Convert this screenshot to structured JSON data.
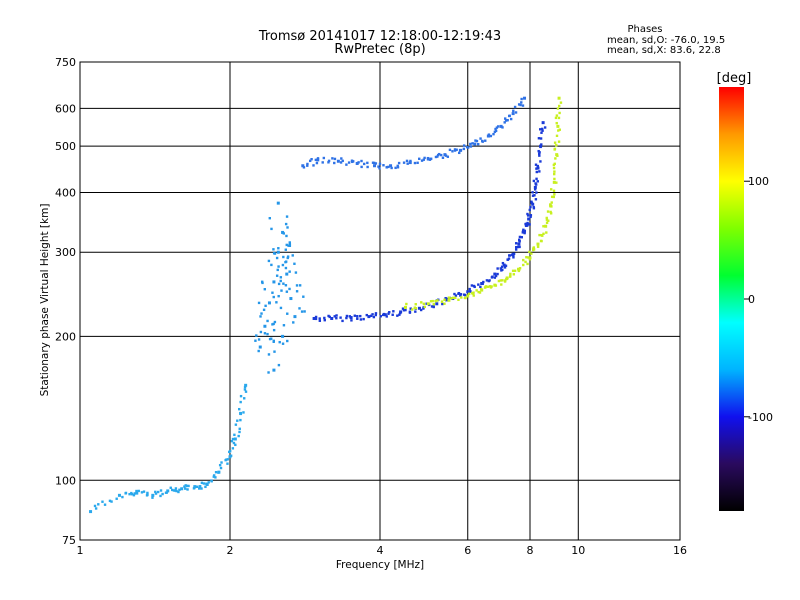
{
  "chart_data": {
    "type": "scatter",
    "title": "Tromsø 20141017 12:18:00-12:19:43",
    "subtitle": "RwPretec (8p)",
    "stats": {
      "heading": "Phases",
      "line1": "mean, sd,O: -76.0, 19.5",
      "line2": "mean, sd,X:  83.6, 22.8"
    },
    "xlabel": "Frequency [MHz]",
    "ylabel": "Stationary phase Virtual Height [km]",
    "x_scale": "log",
    "y_scale": "log",
    "xlim": [
      1,
      16
    ],
    "ylim": [
      75,
      750
    ],
    "x_ticks": [
      1,
      2,
      4,
      6,
      8,
      10,
      16
    ],
    "x_tick_labels": [
      "1",
      "2",
      "4",
      "6",
      "8",
      "10",
      "16"
    ],
    "y_ticks": [
      75,
      100,
      200,
      300,
      400,
      500,
      600,
      750
    ],
    "y_tick_labels": [
      "75",
      "100",
      "200",
      "300",
      "400",
      "500",
      "600",
      "750"
    ],
    "grid": true,
    "colorbar": {
      "label": "[deg]",
      "range": [
        -180,
        180
      ],
      "ticks": [
        100,
        0,
        -100
      ],
      "tick_labels": [
        "100",
        "0",
        "-100"
      ],
      "colors": [
        "#000000",
        "#2a0a5e",
        "#1010ee",
        "#00b4ff",
        "#00ffff",
        "#00ff30",
        "#7fff00",
        "#ffff00",
        "#ff9900",
        "#ff0000"
      ]
    },
    "series": [
      {
        "role": "O-mode F2 trace (blue)",
        "color": "#1a3ad8",
        "x": [
          2.95,
          3.2,
          3.5,
          3.8,
          4.1,
          4.4,
          4.8,
          5.2,
          5.6,
          6.0,
          6.4,
          6.8,
          7.1,
          7.4,
          7.6,
          7.8,
          7.95,
          8.1,
          8.2,
          8.3,
          8.4,
          8.5
        ],
        "y": [
          218,
          218,
          219,
          220,
          222,
          225,
          229,
          234,
          240,
          248,
          258,
          270,
          282,
          296,
          312,
          332,
          352,
          378,
          410,
          450,
          500,
          560
        ]
      },
      {
        "role": "X-mode F2 trace (yellow-green)",
        "color": "#c8f020",
        "x": [
          4.5,
          5.0,
          5.5,
          6.0,
          6.4,
          6.8,
          7.2,
          7.6,
          8.0,
          8.3,
          8.6,
          8.8,
          8.95,
          9.05,
          9.1,
          9.15
        ],
        "y": [
          230,
          234,
          238,
          243,
          250,
          256,
          265,
          276,
          292,
          312,
          340,
          375,
          420,
          480,
          550,
          630
        ]
      },
      {
        "role": "upper oblique trace",
        "color": "#2f72e6",
        "x": [
          2.8,
          3.0,
          3.3,
          3.6,
          3.9,
          4.2,
          4.6,
          5.0,
          5.4,
          5.8,
          6.2,
          6.6,
          7.0,
          7.4,
          7.8
        ],
        "y": [
          455,
          468,
          465,
          460,
          455,
          455,
          462,
          470,
          480,
          490,
          505,
          525,
          550,
          585,
          630
        ]
      },
      {
        "role": "spread F cluster near 2.4-2.6 MHz",
        "color": "#2596e8",
        "x": [
          2.3,
          2.35,
          2.4,
          2.45,
          2.5,
          2.55,
          2.6,
          2.65,
          2.7,
          2.5,
          2.45,
          2.55
        ],
        "y": [
          190,
          210,
          235,
          260,
          300,
          330,
          270,
          240,
          220,
          380,
          170,
          200
        ]
      },
      {
        "role": "E-region trace below 2 MHz",
        "color": "#2aa8ec",
        "x": [
          1.05,
          1.2,
          1.3,
          1.4,
          1.5,
          1.6,
          1.7,
          1.8,
          1.9,
          2.0,
          2.05,
          2.1,
          2.15
        ],
        "y": [
          86,
          93,
          94,
          93,
          95,
          96,
          97,
          98,
          104,
          112,
          122,
          138,
          158
        ]
      }
    ]
  }
}
